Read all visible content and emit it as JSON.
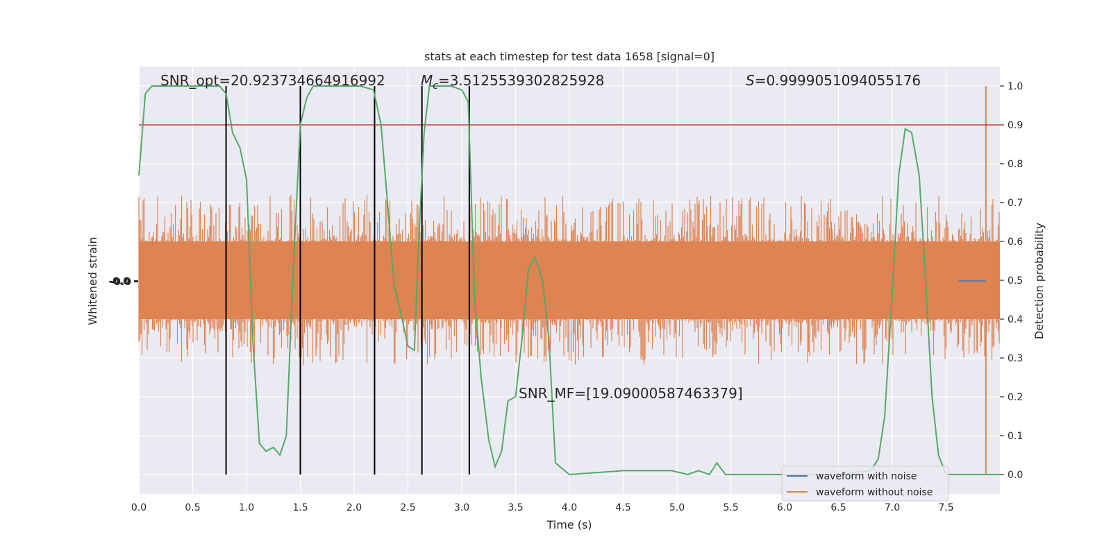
{
  "chart_data": {
    "type": "line",
    "title": "stats at each timestep for test data 1658 [signal=0]",
    "xlabel": "Time (s)",
    "ylabel_left": "Whitened strain",
    "ylabel_right": "Detection probability",
    "xlim": [
      0.0,
      8.0
    ],
    "ylim_right": [
      -0.05,
      1.05
    ],
    "xticks": [
      "0.0",
      "0.5",
      "1.0",
      "1.5",
      "2.0",
      "2.5",
      "3.0",
      "3.5",
      "4.0",
      "4.5",
      "5.0",
      "5.5",
      "6.0",
      "6.5",
      "7.0",
      "7.5"
    ],
    "yticks_right": [
      "0.0",
      "0.1",
      "0.2",
      "0.3",
      "0.4",
      "0.5",
      "0.6",
      "0.7",
      "0.8",
      "0.9",
      "1.0"
    ],
    "left_tick_text": "-0.0",
    "grid": true,
    "legend_position": "lower-right",
    "annotations": {
      "snr_opt": "SNR_opt=20.923734664916992",
      "mc_symbol": "M",
      "mc_sub": "c",
      "mc_value": "=3.5125539302825928",
      "s_symbol": "S",
      "s_value": "=0.9999051094055176",
      "snr_mf": "SNR_MF=[19.09000587463379]"
    },
    "threshold": {
      "value": 0.9,
      "color": "#c03d3e"
    },
    "vertical_markers": [
      0.81,
      1.5,
      2.19,
      2.63,
      3.07
    ],
    "series": [
      {
        "name": "waveform with noise",
        "color": "#4c72b0"
      },
      {
        "name": "waveform without noise",
        "color": "#dd8452"
      }
    ],
    "probability_line": {
      "color": "#55a868",
      "x": [
        0.0,
        0.06,
        0.12,
        0.2,
        0.35,
        0.5,
        0.6,
        0.68,
        0.75,
        0.81,
        0.87,
        0.94,
        1.0,
        1.06,
        1.12,
        1.18,
        1.25,
        1.31,
        1.37,
        1.43,
        1.5,
        1.56,
        1.62,
        1.75,
        1.9,
        2.06,
        2.18,
        2.25,
        2.31,
        2.37,
        2.43,
        2.5,
        2.56,
        2.6,
        2.65,
        2.7,
        2.8,
        2.9,
        3.0,
        3.06,
        3.12,
        3.18,
        3.25,
        3.31,
        3.37,
        3.43,
        3.5,
        3.56,
        3.62,
        3.68,
        3.75,
        3.81,
        3.87,
        4.0,
        4.5,
        4.95,
        5.1,
        5.2,
        5.3,
        5.37,
        5.45,
        5.5,
        5.7,
        6.0,
        6.5,
        6.8,
        6.87,
        6.93,
        7.0,
        7.06,
        7.12,
        7.18,
        7.25,
        7.31,
        7.37,
        7.43,
        7.5,
        7.6,
        7.7,
        7.8,
        8.0
      ],
      "y": [
        0.77,
        0.98,
        1.0,
        1.0,
        1.0,
        1.0,
        1.0,
        1.0,
        1.0,
        0.98,
        0.88,
        0.84,
        0.76,
        0.34,
        0.08,
        0.06,
        0.07,
        0.05,
        0.1,
        0.5,
        0.9,
        0.97,
        1.0,
        1.0,
        1.0,
        1.0,
        0.99,
        0.9,
        0.7,
        0.49,
        0.42,
        0.33,
        0.32,
        0.6,
        0.88,
        1.0,
        1.0,
        1.0,
        0.99,
        0.96,
        0.45,
        0.25,
        0.09,
        0.02,
        0.06,
        0.19,
        0.2,
        0.35,
        0.53,
        0.56,
        0.5,
        0.35,
        0.03,
        0.0,
        0.01,
        0.01,
        0.0,
        0.01,
        0.0,
        0.03,
        0.0,
        0.0,
        0.0,
        0.0,
        0.0,
        0.01,
        0.04,
        0.15,
        0.47,
        0.77,
        0.89,
        0.88,
        0.77,
        0.5,
        0.2,
        0.05,
        0.0,
        0.0,
        0.0,
        0.0,
        0.0
      ]
    }
  }
}
